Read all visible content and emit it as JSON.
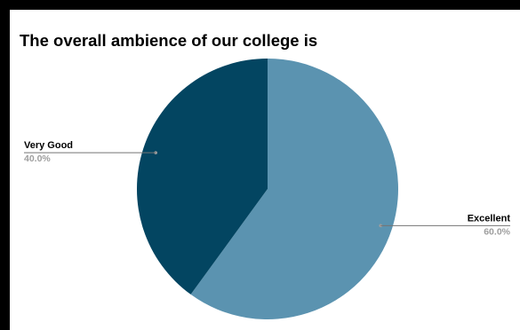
{
  "chart_data": {
    "type": "pie",
    "title": "The overall ambience of our college is",
    "slices": [
      {
        "label": "Excellent",
        "value": 60.0,
        "percent_label": "60.0%",
        "color": "#5b93b0"
      },
      {
        "label": "Very Good",
        "value": 40.0,
        "percent_label": "40.0%",
        "color": "#034561"
      }
    ],
    "start_angle_deg": 0,
    "direction": "clockwise",
    "legend": "none"
  }
}
